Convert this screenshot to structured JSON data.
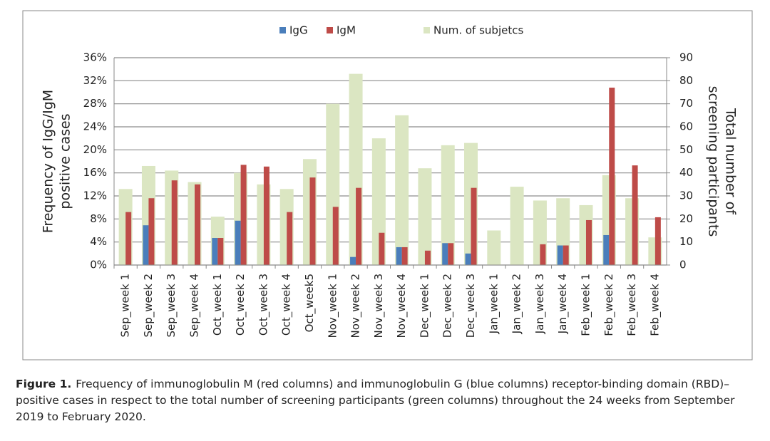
{
  "chart_data": {
    "type": "bar",
    "y_label": [
      "Frequency of IgG/IgM",
      "positive cases"
    ],
    "y2_label": [
      "Total number of",
      "screening participants"
    ],
    "categories": [
      "Sep_week 1",
      "Sep_week 2",
      "Sep_week 3",
      "Sep_week 4",
      "Oct_week 1",
      "Oct_week 2",
      "Oct_week 3",
      "Oct_week 4",
      "Oct_week5",
      "Nov_week 1",
      "Nov_week 2",
      "Nov_week 3",
      "Nov_week 4",
      "Dec_week 1",
      "Dec_week 2",
      "Dec_week 3",
      "Jan_week 1",
      "Jan_week 2",
      "Jan_week 3",
      "Jan_week 4",
      "Feb_week 1",
      "Feb_week 2",
      "Feb_week 3",
      "Feb_week 4"
    ],
    "series": [
      {
        "name": "Num. of subjetcs",
        "color": "#dbe6c2",
        "axis": "y2",
        "values": [
          33,
          43,
          41,
          36,
          21,
          40,
          35,
          33,
          46,
          70,
          83,
          55,
          65,
          42,
          52,
          53,
          15,
          34,
          28,
          29,
          26,
          39,
          29,
          12
        ]
      },
      {
        "name": "IgG",
        "color": "#4a7ebb",
        "values": [
          0,
          6.9,
          0,
          0,
          4.7,
          7.7,
          0,
          0,
          0,
          0,
          1.4,
          0,
          3.1,
          0,
          3.8,
          2.0,
          0,
          0,
          0,
          3.4,
          0,
          5.2,
          0,
          0
        ]
      },
      {
        "name": "IgM",
        "color": "#be4b48",
        "values": [
          9.2,
          11.6,
          14.7,
          14.0,
          4.7,
          17.4,
          17.1,
          9.2,
          15.2,
          10.1,
          13.4,
          5.6,
          3.1,
          2.5,
          3.8,
          13.4,
          0,
          0,
          3.6,
          3.4,
          7.8,
          30.8,
          17.3,
          8.3
        ]
      }
    ],
    "ylim": [
      0,
      36
    ],
    "yticks": [
      {
        "value": 0,
        "label": "0%"
      },
      {
        "value": 4,
        "label": "4%"
      },
      {
        "value": 8,
        "label": "8%"
      },
      {
        "value": 12,
        "label": "12%"
      },
      {
        "value": 16,
        "label": "16%"
      },
      {
        "value": 20,
        "label": "20%"
      },
      {
        "value": 24,
        "label": "24%"
      },
      {
        "value": 28,
        "label": "28%"
      },
      {
        "value": 32,
        "label": "32%"
      },
      {
        "value": 36,
        "label": "36%"
      }
    ],
    "y2lim": [
      0,
      90
    ],
    "y2ticks": [
      0,
      10,
      20,
      30,
      40,
      50,
      60,
      70,
      80,
      90
    ],
    "grid": true
  },
  "caption": {
    "label": "Figure 1.",
    "text": "Frequency of immunoglobulin M (red columns) and immunoglobulin G (blue columns) receptor-binding domain (RBD)–positive cases in respect to the total number of screening participants (green columns) throughout the 24 weeks from September 2019 to February 2020."
  }
}
